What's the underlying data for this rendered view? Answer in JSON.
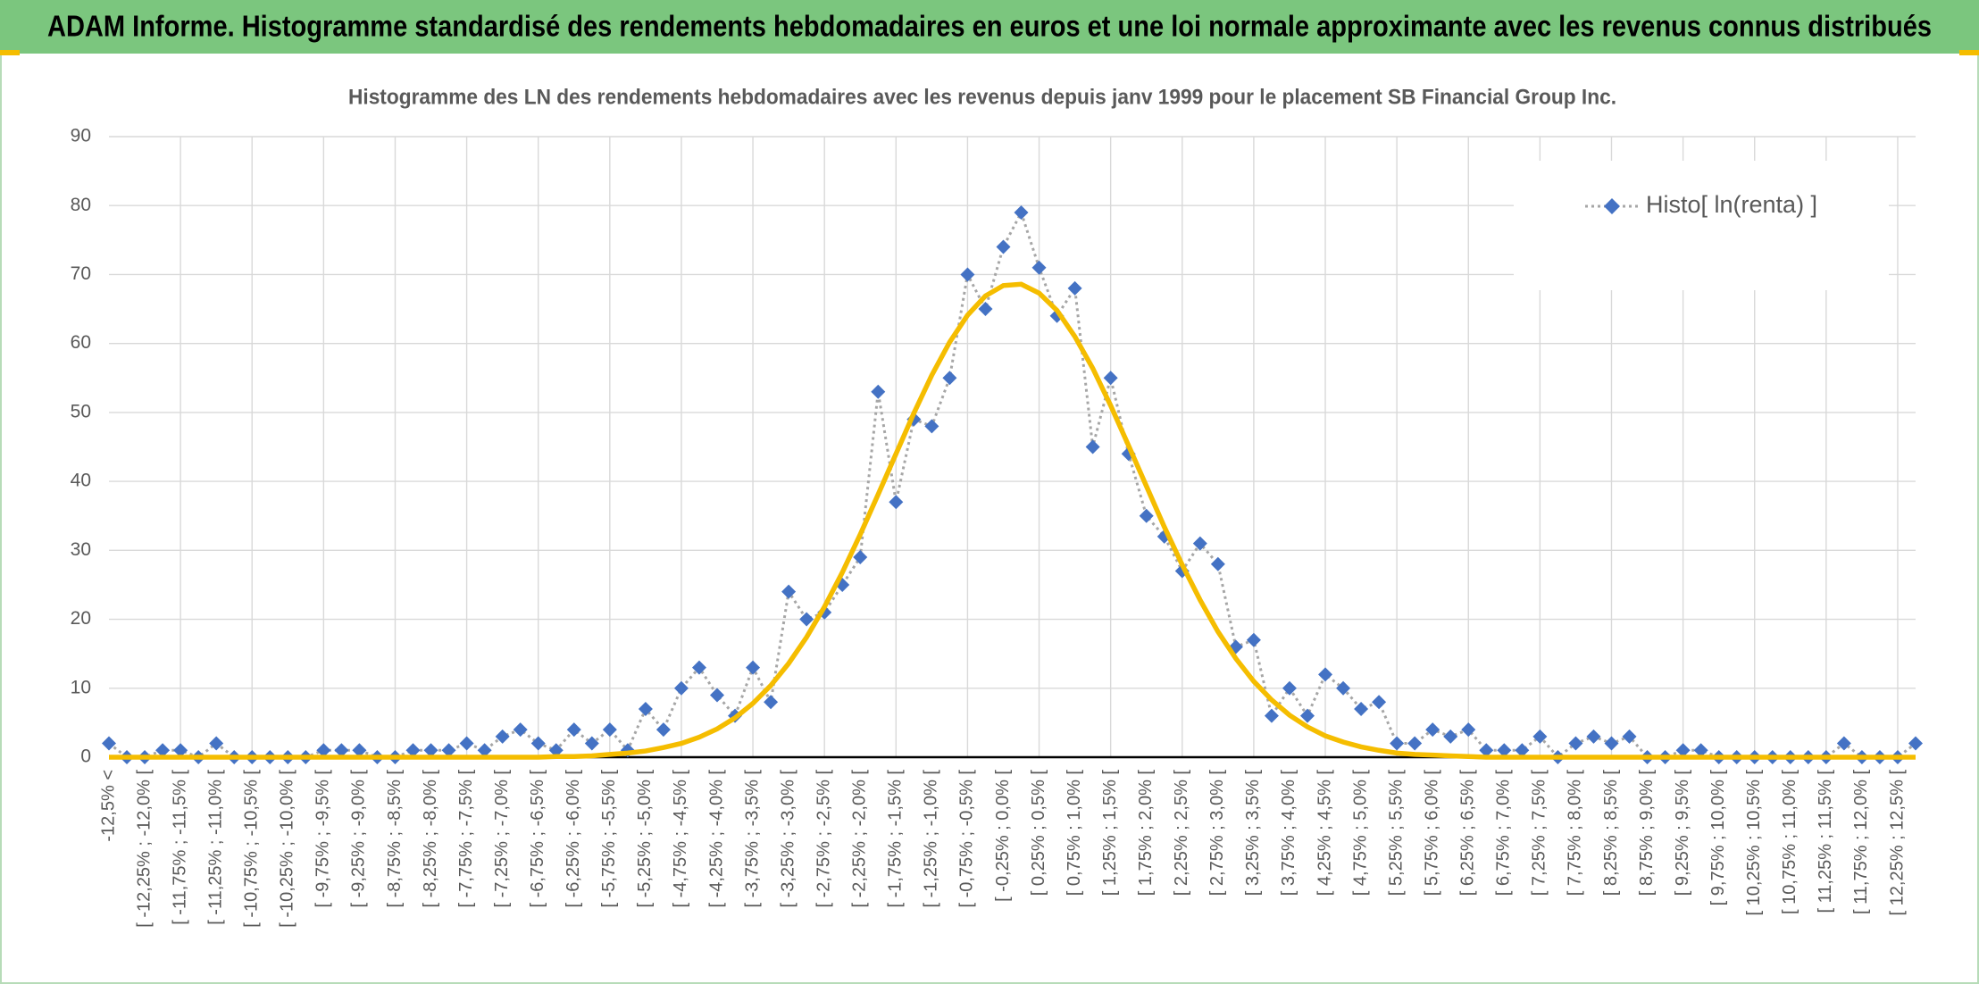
{
  "header": {
    "title": "ADAM Informe. Histogramme standardisé des rendements hebdomadaires en euros et une loi normale approximante avec les revenus connus distribués"
  },
  "chart_data": {
    "type": "line",
    "title": "Histogramme des LN des rendements hebdomadaires avec les revenus depuis janv 1999 pour le placement SB Financial Group Inc.",
    "categories": [
      "-12,5% <",
      null,
      "[ -12,25% ; -12,0% [",
      null,
      "[ -11,75% ; -11,5% [",
      null,
      "[ -11,25% ; -11,0% [",
      null,
      "[ -10,75% ; -10,5% [",
      null,
      "[ -10,25% ; -10,0% [",
      null,
      "[ -9,75% ; -9,5% [",
      null,
      "[ -9,25% ; -9,0% [",
      null,
      "[ -8,75% ; -8,5% [",
      null,
      "[ -8,25% ; -8,0% [",
      null,
      "[ -7,75% ; -7,5% [",
      null,
      "[ -7,25% ; -7,0% [",
      null,
      "[ -6,75% ; -6,5% [",
      null,
      "[ -6,25% ; -6,0% [",
      null,
      "[ -5,75% ; -5,5% [",
      null,
      "[ -5,25% ; -5,0% [",
      null,
      "[ -4,75% ; -4,5% [",
      null,
      "[ -4,25% ; -4,0% [",
      null,
      "[ -3,75% ; -3,5% [",
      null,
      "[ -3,25% ; -3,0% [",
      null,
      "[ -2,75% ; -2,5% [",
      null,
      "[ -2,25% ; -2,0% [",
      null,
      "[ -1,75% ; -1,5% [",
      null,
      "[ -1,25% ; -1,0% [",
      null,
      "[ -0,75% ; -0,5% [",
      null,
      "[ -0,25% ; 0,0% [",
      null,
      "[ 0,25% ; 0,5% [",
      null,
      "[ 0,75% ; 1,0% [",
      null,
      "[ 1,25% ; 1,5% [",
      null,
      "[ 1,75% ; 2,0% [",
      null,
      "[ 2,25% ; 2,5% [",
      null,
      "[ 2,75% ; 3,0% [",
      null,
      "[ 3,25% ; 3,5% [",
      null,
      "[ 3,75% ; 4,0% [",
      null,
      "[ 4,25% ; 4,5% [",
      null,
      "[ 4,75% ; 5,0% [",
      null,
      "[ 5,25% ; 5,5% [",
      null,
      "[ 5,75% ; 6,0% [",
      null,
      "[ 6,25% ; 6,5% [",
      null,
      "[ 6,75% ; 7,0% [",
      null,
      "[ 7,25% ; 7,5% [",
      null,
      "[ 7,75% ; 8,0% [",
      null,
      "[ 8,25% ; 8,5% [",
      null,
      "[ 8,75% ; 9,0% [",
      null,
      "[ 9,25% ; 9,5% [",
      null,
      "[ 9,75% ; 10,0% [",
      null,
      "[ 10,25% ; 10,5% [",
      null,
      "[ 10,75% ; 11,0% [",
      null,
      "[ 11,25% ; 11,5% [",
      null,
      "[ 11,75% ; 12,0% [",
      null,
      "[ 12,25% ; 12,5% [",
      null
    ],
    "series": [
      {
        "name": "Histo[ ln(renta) ]",
        "color": "#4472c4",
        "line_color": "#a6a6a6",
        "line_style": "dotted",
        "marker": "diamond",
        "values": [
          2,
          0,
          0,
          1,
          1,
          0,
          2,
          0,
          0,
          0,
          0,
          0,
          1,
          1,
          1,
          0,
          0,
          1,
          1,
          1,
          2,
          1,
          3,
          4,
          2,
          1,
          4,
          2,
          4,
          1,
          7,
          4,
          10,
          13,
          9,
          6,
          13,
          8,
          24,
          20,
          21,
          25,
          29,
          53,
          37,
          49,
          48,
          55,
          70,
          65,
          74,
          79,
          71,
          64,
          68,
          45,
          55,
          44,
          35,
          32,
          27,
          31,
          28,
          16,
          17,
          6,
          10,
          6,
          12,
          10,
          7,
          8,
          2,
          2,
          4,
          3,
          4,
          1,
          1,
          1,
          3,
          0,
          2,
          3,
          2,
          3,
          0,
          0,
          1,
          1,
          0,
          0,
          0,
          0,
          0,
          0,
          0,
          2,
          0,
          0,
          0,
          2
        ]
      },
      {
        "color": "#f5bd00",
        "line_style": "solid",
        "marker": "none",
        "values": [
          0,
          0,
          0,
          0,
          0,
          0,
          0,
          0,
          0,
          0,
          0,
          0,
          0,
          0,
          0,
          0,
          0,
          0,
          0,
          0,
          0,
          0,
          0,
          0,
          0,
          0.1,
          0.1,
          0.2,
          0.4,
          0.6,
          0.9,
          1.4,
          2.0,
          2.9,
          4.1,
          5.7,
          7.8,
          10.4,
          13.6,
          17.4,
          21.8,
          26.8,
          32.3,
          38.1,
          44.0,
          49.9,
          55.4,
          60.2,
          64.1,
          66.9,
          68.4,
          68.6,
          67.3,
          64.8,
          61.0,
          56.4,
          51.0,
          45.2,
          39.3,
          33.4,
          27.9,
          22.8,
          18.2,
          14.3,
          11.0,
          8.3,
          6.1,
          4.4,
          3.1,
          2.2,
          1.5,
          1.0,
          0.6,
          0.4,
          0.3,
          0.2,
          0.1,
          0,
          0,
          0,
          0,
          0,
          0,
          0,
          0,
          0,
          0,
          0,
          0,
          0,
          0,
          0,
          0,
          0,
          0,
          0,
          0,
          0,
          0,
          0,
          0,
          0
        ]
      }
    ],
    "ylim": [
      0,
      90
    ],
    "yticks": [
      0,
      10,
      20,
      30,
      40,
      50,
      60,
      70,
      80,
      90
    ],
    "grid": true,
    "legend": "upper right"
  }
}
